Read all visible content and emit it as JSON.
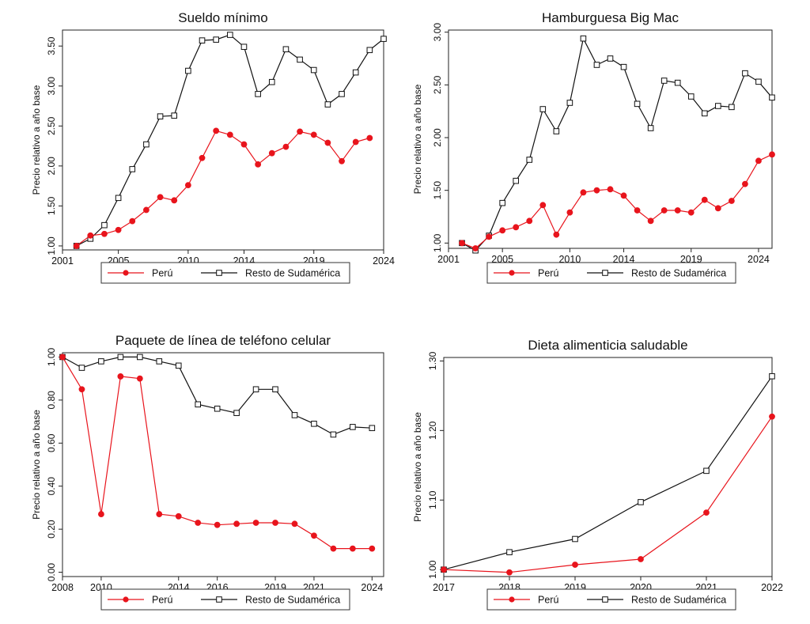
{
  "yaxis_label": "Precio relativo a año base",
  "legend": {
    "peru": "Perú",
    "resto": "Resto de Sudamérica"
  },
  "colors": {
    "peru": "#e8141c",
    "resto": "#111111"
  },
  "chart_data": [
    {
      "type": "line",
      "title": "Sueldo mínimo",
      "ylabel": "Precio relativo a año base",
      "xlim": [
        2001,
        2024
      ],
      "ylim": [
        0.95,
        3.7
      ],
      "xticks": [
        2001,
        2005,
        2010,
        2014,
        2019,
        2024
      ],
      "yticks": [
        1.0,
        1.5,
        2.0,
        2.5,
        3.0,
        3.5
      ],
      "ytick_labels": [
        "1.00",
        "1.50",
        "2.00",
        "2.50",
        "3.00",
        "3.50"
      ],
      "series": [
        {
          "name": "Perú",
          "x": [
            2002,
            2003,
            2004,
            2005,
            2006,
            2007,
            2008,
            2009,
            2010,
            2011,
            2012,
            2013,
            2014,
            2015,
            2016,
            2017,
            2018,
            2019,
            2020,
            2021,
            2022,
            2023
          ],
          "y": [
            1.0,
            1.13,
            1.15,
            1.2,
            1.31,
            1.45,
            1.61,
            1.57,
            1.76,
            2.1,
            2.44,
            2.39,
            2.27,
            2.02,
            2.16,
            2.24,
            2.43,
            2.39,
            2.29,
            2.06,
            2.3,
            2.35
          ]
        },
        {
          "name": "Resto de Sudamérica",
          "x": [
            2002,
            2003,
            2004,
            2005,
            2006,
            2007,
            2008,
            2009,
            2010,
            2011,
            2012,
            2013,
            2014,
            2015,
            2016,
            2017,
            2018,
            2019,
            2020,
            2021,
            2022,
            2023,
            2024
          ],
          "y": [
            1.0,
            1.09,
            1.26,
            1.6,
            1.96,
            2.27,
            2.62,
            2.63,
            3.19,
            3.57,
            3.58,
            3.64,
            3.49,
            2.9,
            3.05,
            3.46,
            3.33,
            3.2,
            2.77,
            2.9,
            3.17,
            3.45,
            3.59
          ]
        }
      ]
    },
    {
      "type": "line",
      "title": "Hamburguesa Big Mac",
      "ylabel": "Precio relativo a año base",
      "xlim": [
        2001,
        2025
      ],
      "ylim": [
        0.95,
        3.02
      ],
      "xticks": [
        2001,
        2005,
        2010,
        2014,
        2019,
        2024
      ],
      "yticks": [
        1.0,
        1.5,
        2.0,
        2.5,
        3.0
      ],
      "ytick_labels": [
        "1.00",
        "1.50",
        "2.00",
        "2.50",
        "3.00"
      ],
      "series": [
        {
          "name": "Perú",
          "x": [
            2002,
            2003,
            2004,
            2005,
            2006,
            2007,
            2008,
            2009,
            2010,
            2011,
            2012,
            2013,
            2014,
            2015,
            2016,
            2017,
            2018,
            2019,
            2020,
            2021,
            2022,
            2023,
            2024,
            2025
          ],
          "y": [
            1.0,
            0.95,
            1.06,
            1.12,
            1.15,
            1.21,
            1.36,
            1.08,
            1.29,
            1.48,
            1.5,
            1.51,
            1.45,
            1.31,
            1.21,
            1.31,
            1.31,
            1.29,
            1.41,
            1.33,
            1.4,
            1.56,
            1.78,
            1.84
          ]
        },
        {
          "name": "Resto de Sudamérica",
          "x": [
            2002,
            2003,
            2004,
            2005,
            2006,
            2007,
            2008,
            2009,
            2010,
            2011,
            2012,
            2013,
            2014,
            2015,
            2016,
            2017,
            2018,
            2019,
            2020,
            2021,
            2022,
            2023,
            2024,
            2025
          ],
          "y": [
            1.0,
            0.93,
            1.07,
            1.38,
            1.59,
            1.79,
            2.27,
            2.06,
            2.33,
            2.94,
            2.69,
            2.75,
            2.67,
            2.32,
            2.09,
            2.54,
            2.52,
            2.39,
            2.23,
            2.3,
            2.29,
            2.61,
            2.53,
            2.38
          ]
        }
      ]
    },
    {
      "type": "line",
      "title": "Paquete de línea de teléfono celular",
      "ylabel": "Precio relativo a año base",
      "xlim": [
        2008,
        2024.6
      ],
      "ylim": [
        -0.02,
        1.02
      ],
      "xticks": [
        2008,
        2010,
        2014,
        2016,
        2019,
        2021,
        2024
      ],
      "yticks": [
        0.0,
        0.2,
        0.4,
        0.6,
        0.8,
        1.0
      ],
      "ytick_labels": [
        "0.00",
        "0.20",
        "0.40",
        "0.60",
        "0.80",
        "1.00"
      ],
      "series": [
        {
          "name": "Perú",
          "x": [
            2008,
            2009,
            2010,
            2011,
            2012,
            2013,
            2014,
            2015,
            2016,
            2017,
            2018,
            2019,
            2020,
            2021,
            2022,
            2023,
            2024
          ],
          "y": [
            1.0,
            0.85,
            0.27,
            0.91,
            0.9,
            0.27,
            0.26,
            0.23,
            0.22,
            0.225,
            0.23,
            0.23,
            0.225,
            0.17,
            0.11,
            0.11,
            0.11
          ]
        },
        {
          "name": "Resto de Sudamérica",
          "x": [
            2008,
            2009,
            2010,
            2011,
            2012,
            2013,
            2014,
            2015,
            2016,
            2017,
            2018,
            2019,
            2020,
            2021,
            2022,
            2023,
            2024
          ],
          "y": [
            1.0,
            0.95,
            0.98,
            1.0,
            1.0,
            0.98,
            0.96,
            0.78,
            0.76,
            0.74,
            0.85,
            0.85,
            0.73,
            0.69,
            0.64,
            0.675,
            0.67
          ]
        }
      ]
    },
    {
      "type": "line",
      "title": "Dieta alimenticia saludable",
      "ylabel": "Precio relativo a año base",
      "xlim": [
        2017,
        2022
      ],
      "ylim": [
        0.99,
        1.305
      ],
      "xticks": [
        2017,
        2018,
        2019,
        2020,
        2021,
        2022
      ],
      "yticks": [
        1.0,
        1.1,
        1.2,
        1.3
      ],
      "ytick_labels": [
        "1.00",
        "1.10",
        "1.20",
        "1.30"
      ],
      "series": [
        {
          "name": "Perú",
          "x": [
            2017,
            2018,
            2019,
            2020,
            2021,
            2022
          ],
          "y": [
            1.0,
            0.996,
            1.007,
            1.015,
            1.082,
            1.22
          ]
        },
        {
          "name": "Resto de Sudamérica",
          "x": [
            2017,
            2018,
            2019,
            2020,
            2021,
            2022
          ],
          "y": [
            1.0,
            1.025,
            1.044,
            1.097,
            1.142,
            1.278
          ]
        }
      ]
    }
  ]
}
